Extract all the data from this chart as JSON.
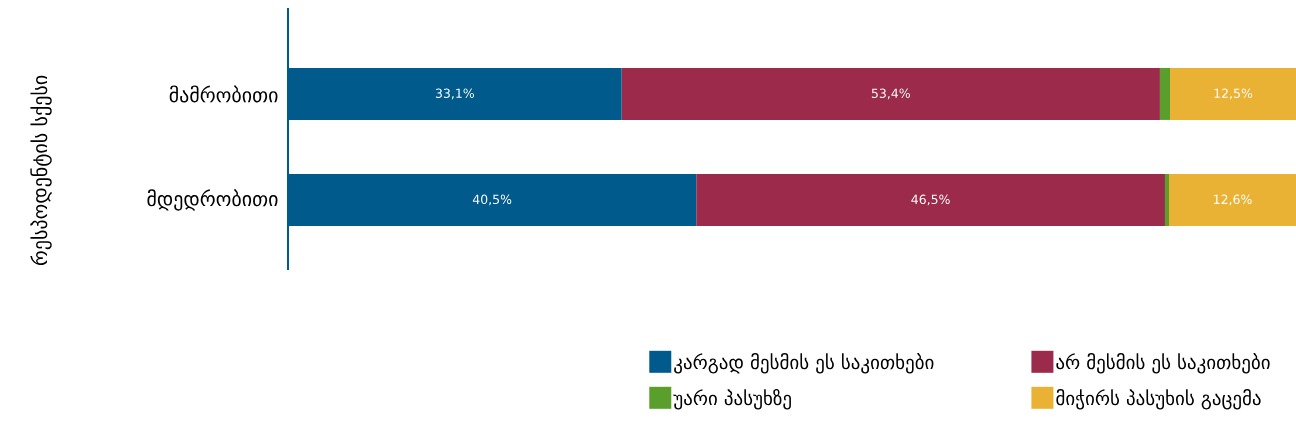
{
  "chart_data": {
    "type": "bar",
    "orientation": "horizontal",
    "stacked": true,
    "ylabel": "რესპოდენტის სქესი",
    "categories": [
      "მამრობითი",
      "მდედრობითი"
    ],
    "xlim": [
      0,
      100
    ],
    "series": [
      {
        "name": "კარგად მესმის ეს საკითხები",
        "color": "#015a8c",
        "values": [
          33.1,
          40.5
        ],
        "value_labels": [
          "33,1%",
          "40,5%"
        ]
      },
      {
        "name": "არ მესმის ეს საკითხები",
        "color": "#9b2a4b",
        "values": [
          53.4,
          46.5
        ],
        "value_labels": [
          "53,4%",
          "46,5%"
        ]
      },
      {
        "name": "უარი პასუხზე",
        "color": "#5a9e2b",
        "values": [
          1.0,
          0.4
        ],
        "value_labels": [
          null,
          null
        ]
      },
      {
        "name": "მიჭირს პასუხის გაცემა",
        "color": "#eab234",
        "values": [
          12.5,
          12.6
        ],
        "value_labels": [
          "12,5%",
          "12,6%"
        ]
      }
    ],
    "legend": "bottom",
    "tick_labels": "y"
  }
}
